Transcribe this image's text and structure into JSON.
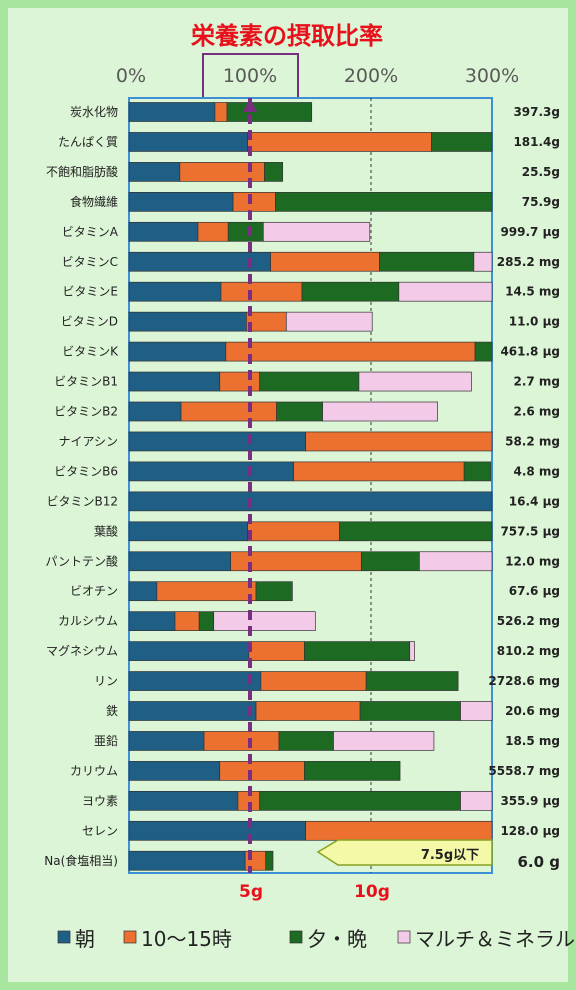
{
  "chart_data": {
    "type": "bar",
    "stacked": true,
    "orientation": "horizontal",
    "title": "栄養素の摂取比率",
    "xaxis_labels": [
      "0%",
      "100%",
      "200%",
      "300%"
    ],
    "xlim": [
      0,
      300
    ],
    "categories": [
      "炭水化物",
      "たんぱく質",
      "不飽和脂肪酸",
      "食物繊維",
      "ビタミンA",
      "ビタミンC",
      "ビタミンE",
      "ビタミンD",
      "ビタミンK",
      "ビタミンB1",
      "ビタミンB2",
      "ナイアシン",
      "ビタミンB6",
      "ビタミンB12",
      "葉酸",
      "パントテン酸",
      "ビオチン",
      "カルシウム",
      "マグネシウム",
      "リン",
      "鉄",
      "亜鉛",
      "カリウム",
      "ヨウ素",
      "セレン",
      "Na(食塩相当)"
    ],
    "amounts": [
      "397.3g",
      "181.4g",
      "25.5g",
      "75.9g",
      "999.7 μg",
      "285.2 mg",
      "14.5 mg",
      "11.0 μg",
      "461.8 μg",
      "2.7 mg",
      "2.6 mg",
      "58.2 mg",
      "4.8 mg",
      "16.4 μg",
      "757.5 μg",
      "12.0 mg",
      "67.6 μg",
      "526.2 mg",
      "810.2 mg",
      "2728.6 mg",
      "20.6 mg",
      "18.5 mg",
      "5558.7 mg",
      "355.9 μg",
      "128.0 μg",
      "6.0 g"
    ],
    "series": [
      {
        "name": "朝",
        "color": "#1f5f85",
        "values": [
          71,
          98,
          42,
          86,
          57,
          117,
          76,
          97,
          80,
          75,
          43,
          146,
          136,
          300,
          98,
          84,
          23,
          38,
          99,
          109,
          105,
          62,
          75,
          90,
          146,
          96
        ]
      },
      {
        "name": "10～15時",
        "color": "#ec7030",
        "values": [
          10,
          152,
          70,
          35,
          25,
          90,
          67,
          33,
          206,
          33,
          79,
          154,
          141,
          0,
          76,
          108,
          82,
          20,
          46,
          87,
          86,
          62,
          70,
          18,
          154,
          17
        ]
      },
      {
        "name": "夕・晩",
        "color": "#1d6b22",
        "values": [
          70,
          50,
          15,
          179,
          29,
          78,
          80,
          0,
          14,
          82,
          38,
          0,
          22,
          0,
          126,
          48,
          30,
          12,
          87,
          76,
          83,
          45,
          79,
          166,
          0,
          6
        ]
      },
      {
        "name": "マルチ＆ミネラル",
        "color": "#f3cbe8",
        "values": [
          0,
          0,
          0,
          0,
          88,
          15,
          77,
          71,
          0,
          93,
          95,
          0,
          0,
          0,
          0,
          60,
          0,
          84,
          4,
          0,
          26,
          83,
          0,
          26,
          0,
          0
        ]
      }
    ],
    "reference_line": {
      "value": 100,
      "label_bottom": "5g"
    },
    "secondary_line": {
      "value": 200,
      "label_bottom": "10g"
    },
    "na_note": "7.5g以下",
    "legend_position": "bottom"
  }
}
